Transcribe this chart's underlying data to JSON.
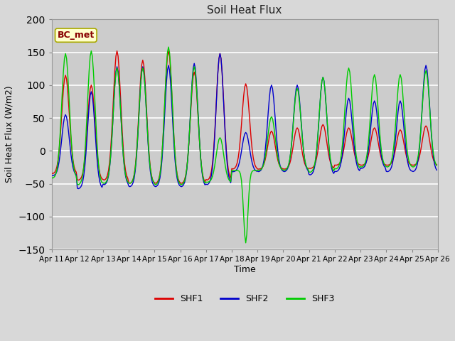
{
  "title": "Soil Heat Flux",
  "xlabel": "Time",
  "ylabel": "Soil Heat Flux (W/m2)",
  "ylim": [
    -150,
    200
  ],
  "xlim": [
    0,
    360
  ],
  "fig_bg_color": "#d8d8d8",
  "plot_bg_color": "#cccccc",
  "grid_color": "#ffffff",
  "colors": {
    "SHF1": "#dd0000",
    "SHF2": "#0000cc",
    "SHF3": "#00cc00"
  },
  "legend_label": "BC_met",
  "tick_labels": [
    "Apr 11",
    "Apr 12",
    "Apr 13",
    "Apr 14",
    "Apr 15",
    "Apr 16",
    "Apr 17",
    "Apr 18",
    "Apr 19",
    "Apr 20",
    "Apr 21",
    "Apr 22",
    "Apr 23",
    "Apr 24",
    "Apr 25",
    "Apr 26"
  ],
  "tick_positions": [
    0,
    24,
    48,
    72,
    96,
    120,
    144,
    168,
    192,
    216,
    240,
    264,
    288,
    312,
    336,
    360
  ],
  "shf1_peaks": [
    115,
    100,
    152,
    138,
    152,
    120,
    148,
    102,
    30,
    35,
    40,
    35,
    35,
    32,
    38
  ],
  "shf2_peaks": [
    55,
    90,
    128,
    128,
    130,
    133,
    148,
    28,
    100,
    100,
    112,
    80,
    76,
    76,
    130
  ],
  "shf3_peaks": [
    148,
    152,
    126,
    126,
    158,
    128,
    20,
    -140,
    52,
    95,
    112,
    126,
    116,
    116,
    122
  ],
  "shf1_nights": [
    -35,
    -45,
    -45,
    -50,
    -50,
    -50,
    -45,
    -28,
    -28,
    -28,
    -27,
    -22,
    -22,
    -22,
    -22
  ],
  "shf2_nights": [
    -38,
    -58,
    -52,
    -55,
    -55,
    -55,
    -52,
    -32,
    -32,
    -32,
    -37,
    -32,
    -27,
    -32,
    -32
  ],
  "shf3_nights": [
    -42,
    -52,
    -50,
    -50,
    -52,
    -52,
    -48,
    -30,
    -30,
    -30,
    -33,
    -28,
    -25,
    -25,
    -25
  ],
  "peak_hour": 13,
  "n_per_day": 24
}
